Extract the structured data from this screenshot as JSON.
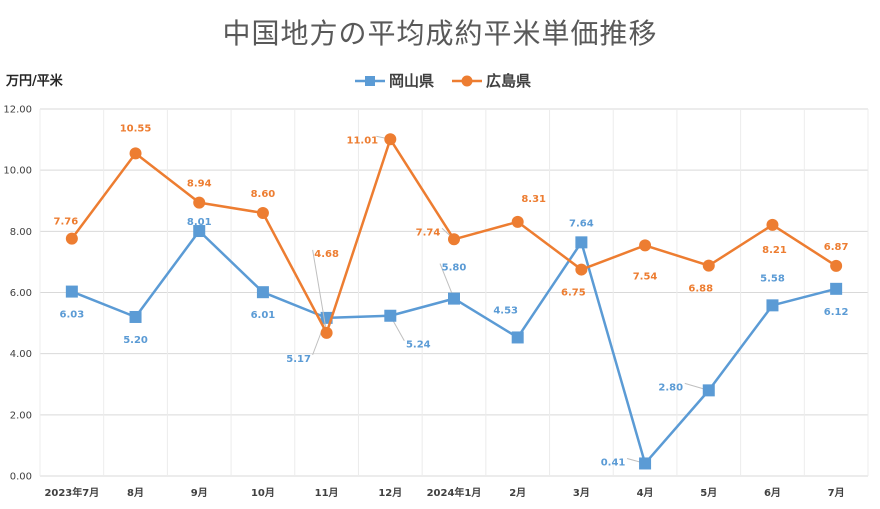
{
  "chart_data": {
    "type": "line",
    "title": "中国地方の平均成約平米単価推移",
    "ylabel": "万円/平米",
    "ylim": [
      0,
      12
    ],
    "yticks": [
      "0.00",
      "2.00",
      "4.00",
      "6.00",
      "8.00",
      "10.00",
      "12.00"
    ],
    "grid": true,
    "legend_position": "top-center",
    "categories": [
      "2023年7月",
      "8月",
      "9月",
      "10月",
      "11月",
      "12月",
      "2024年1月",
      "2月",
      "3月",
      "4月",
      "5月",
      "6月",
      "7月"
    ],
    "series": [
      {
        "name": "岡山県",
        "color": "#5B9BD5",
        "marker": "square",
        "values": [
          6.03,
          5.2,
          8.01,
          6.01,
          5.17,
          5.24,
          5.8,
          4.53,
          7.64,
          0.41,
          2.8,
          5.58,
          6.12
        ],
        "labels": [
          "6.03",
          "5.20",
          "8.01",
          "6.01",
          "5.17",
          "5.24",
          "5.80",
          "4.53",
          "7.64",
          "0.41",
          "2.80",
          "5.58",
          "6.12"
        ]
      },
      {
        "name": "広島県",
        "color": "#ED7D31",
        "marker": "circle",
        "values": [
          7.76,
          10.55,
          8.94,
          8.6,
          4.68,
          11.01,
          7.74,
          8.31,
          6.75,
          7.54,
          6.88,
          8.21,
          6.87
        ],
        "labels": [
          "7.76",
          "10.55",
          "8.94",
          "8.60",
          "4.68",
          "11.01",
          "7.74",
          "8.31",
          "6.75",
          "7.54",
          "6.88",
          "8.21",
          "6.87"
        ]
      }
    ]
  }
}
